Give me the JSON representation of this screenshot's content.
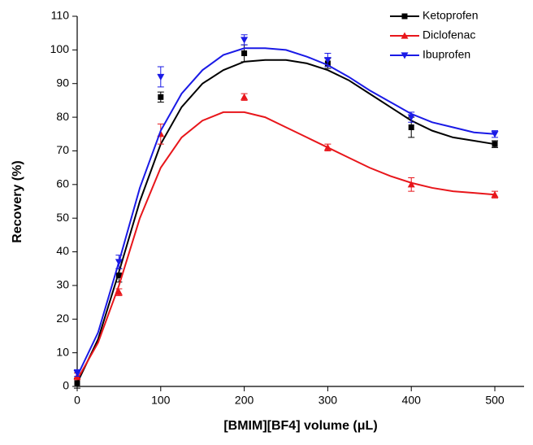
{
  "chart_data": {
    "type": "scatter",
    "x_label": "[BMIM][BF4] volume (μL)",
    "y_label": "Recovery (%)",
    "x": [
      0,
      50,
      100,
      200,
      300,
      400,
      500
    ],
    "fit_x": [
      0,
      25,
      50,
      75,
      100,
      125,
      150,
      175,
      200,
      225,
      250,
      275,
      300,
      325,
      350,
      375,
      400,
      425,
      450,
      475,
      500
    ],
    "series": [
      {
        "name": "Ketoprofen",
        "color": "#000000",
        "marker": "square",
        "values": [
          1,
          33,
          86,
          99,
          96,
          77,
          72
        ],
        "errors": [
          1.5,
          2,
          1.5,
          2.5,
          1.5,
          3,
          1
        ],
        "fit": [
          1,
          14,
          34,
          55,
          72,
          83,
          90,
          94,
          96.5,
          97,
          97,
          96,
          94,
          91,
          87,
          83,
          79,
          76,
          74,
          73,
          72
        ]
      },
      {
        "name": "Diclofenac",
        "color": "#e8161b",
        "marker": "triangle-up",
        "values": [
          3,
          28,
          75,
          86,
          71,
          60,
          57
        ],
        "errors": [
          1,
          1,
          3,
          1,
          1,
          2,
          1
        ],
        "fit": [
          2,
          13,
          30,
          50,
          65,
          74,
          79,
          81.5,
          81.5,
          80,
          77,
          74,
          71,
          68,
          65,
          62.5,
          60.5,
          59,
          58,
          57.5,
          57
        ]
      },
      {
        "name": "Ibuprofen",
        "color": "#1a1ae6",
        "marker": "triangle-down",
        "values": [
          4,
          37,
          92,
          103,
          97,
          80,
          75
        ],
        "errors": [
          1,
          2,
          3,
          1.5,
          2,
          1.5,
          1
        ],
        "fit": [
          3,
          16,
          37,
          59,
          76,
          87,
          94,
          98.5,
          100.5,
          100.5,
          100,
          98,
          95.5,
          92,
          88,
          84.5,
          81,
          78.5,
          77,
          75.5,
          75
        ]
      }
    ],
    "xlim": [
      0,
      535
    ],
    "ylim": [
      0,
      110
    ],
    "xticks": [
      0,
      100,
      200,
      300,
      400,
      500
    ],
    "yticks": [
      0,
      10,
      20,
      30,
      40,
      50,
      60,
      70,
      80,
      90,
      100,
      110
    ],
    "legend": "top-right"
  }
}
